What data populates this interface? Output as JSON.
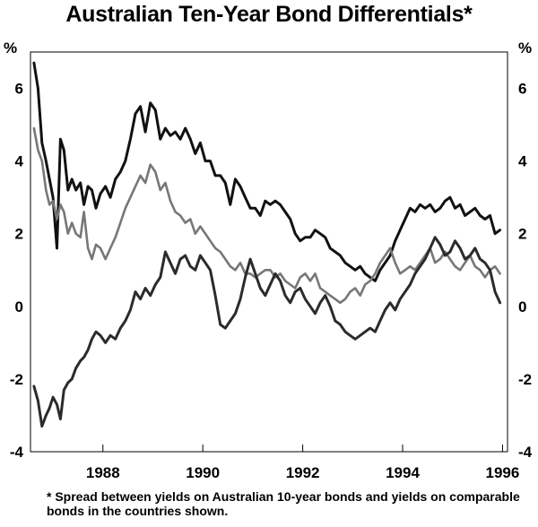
{
  "chart_data": {
    "type": "line",
    "title": "Australian Ten-Year Bond Differentials*",
    "left_unit": "%",
    "right_unit": "%",
    "ylim": [
      -4,
      7
    ],
    "xlim": [
      1986.55,
      1996.1
    ],
    "y_ticks": [
      "6",
      "4",
      "2",
      "0",
      "-2",
      "-4"
    ],
    "y_tick_values": [
      6,
      4,
      2,
      0,
      -2,
      -4
    ],
    "x_ticks": [
      "1988",
      "1990",
      "1992",
      "1994",
      "1996"
    ],
    "x_tick_values": [
      1988,
      1990,
      1992,
      1994,
      1996
    ],
    "note": "* Spread between yields on Australian 10-year bonds and yields on comparable bonds in the countries shown.",
    "series": [
      {
        "color": "#111111",
        "x": [
          1986.62,
          1986.7,
          1986.78,
          1986.86,
          1986.93,
          1987.0,
          1987.08,
          1987.15,
          1987.22,
          1987.3,
          1987.38,
          1987.46,
          1987.55,
          1987.62,
          1987.7,
          1987.78,
          1987.86,
          1987.95,
          1988.05,
          1988.15,
          1988.25,
          1988.35,
          1988.45,
          1988.55,
          1988.65,
          1988.75,
          1988.85,
          1988.95,
          1989.05,
          1989.15,
          1989.25,
          1989.35,
          1989.45,
          1989.55,
          1989.65,
          1989.75,
          1989.85,
          1989.95,
          1990.05,
          1990.15,
          1990.25,
          1990.35,
          1990.45,
          1990.55,
          1990.65,
          1990.75,
          1990.85,
          1990.95,
          1991.05,
          1991.15,
          1991.25,
          1991.35,
          1991.45,
          1991.55,
          1991.65,
          1991.75,
          1991.85,
          1991.95,
          1992.05,
          1992.15,
          1992.25,
          1992.35,
          1992.45,
          1992.55,
          1992.65,
          1992.75,
          1992.85,
          1992.95,
          1993.05,
          1993.15,
          1993.25,
          1993.35,
          1993.45,
          1993.55,
          1993.65,
          1993.75,
          1993.85,
          1993.95,
          1994.05,
          1994.15,
          1994.25,
          1994.35,
          1994.45,
          1994.55,
          1994.65,
          1994.75,
          1994.85,
          1994.95,
          1995.05,
          1995.15,
          1995.25,
          1995.35,
          1995.45,
          1995.55,
          1995.65,
          1995.75,
          1995.85,
          1995.95
        ],
        "y": [
          6.7,
          6.0,
          4.5,
          4.0,
          3.5,
          3.0,
          1.6,
          4.6,
          4.3,
          3.2,
          3.5,
          3.2,
          3.4,
          2.8,
          3.3,
          3.2,
          2.7,
          3.1,
          3.3,
          3.0,
          3.5,
          3.7,
          4.0,
          4.6,
          5.3,
          5.5,
          4.8,
          5.6,
          5.4,
          4.6,
          4.9,
          4.7,
          4.8,
          4.6,
          4.9,
          4.6,
          4.2,
          4.5,
          4.0,
          4.0,
          3.6,
          3.6,
          3.4,
          2.8,
          3.5,
          3.3,
          3.0,
          2.7,
          2.7,
          2.5,
          2.9,
          2.8,
          2.9,
          2.8,
          2.6,
          2.4,
          2.0,
          1.8,
          1.9,
          1.9,
          2.1,
          2.0,
          1.9,
          1.6,
          1.5,
          1.4,
          1.2,
          1.1,
          1.0,
          1.1,
          0.9,
          0.8,
          0.7,
          1.0,
          1.2,
          1.4,
          1.8,
          2.1,
          2.4,
          2.7,
          2.6,
          2.8,
          2.7,
          2.8,
          2.6,
          2.7,
          2.9,
          3.0,
          2.7,
          2.8,
          2.5,
          2.6,
          2.7,
          2.5,
          2.4,
          2.5,
          2.0,
          2.1
        ]
      },
      {
        "color": "#777777",
        "x": [
          1986.62,
          1986.7,
          1986.78,
          1986.86,
          1986.93,
          1987.0,
          1987.08,
          1987.15,
          1987.22,
          1987.3,
          1987.38,
          1987.46,
          1987.55,
          1987.62,
          1987.7,
          1987.78,
          1987.86,
          1987.95,
          1988.05,
          1988.15,
          1988.25,
          1988.35,
          1988.45,
          1988.55,
          1988.65,
          1988.75,
          1988.85,
          1988.95,
          1989.05,
          1989.15,
          1989.25,
          1989.35,
          1989.45,
          1989.55,
          1989.65,
          1989.75,
          1989.85,
          1989.95,
          1990.05,
          1990.15,
          1990.25,
          1990.35,
          1990.45,
          1990.55,
          1990.65,
          1990.75,
          1990.85,
          1990.95,
          1991.05,
          1991.15,
          1991.25,
          1991.35,
          1991.45,
          1991.55,
          1991.65,
          1991.75,
          1991.85,
          1991.95,
          1992.05,
          1992.15,
          1992.25,
          1992.35,
          1992.45,
          1992.55,
          1992.65,
          1992.75,
          1992.85,
          1992.95,
          1993.05,
          1993.15,
          1993.25,
          1993.35,
          1993.45,
          1993.55,
          1993.65,
          1993.75,
          1993.85,
          1993.95,
          1994.05,
          1994.15,
          1994.25,
          1994.35,
          1994.45,
          1994.55,
          1994.65,
          1994.75,
          1994.85,
          1994.95,
          1995.05,
          1995.15,
          1995.25,
          1995.35,
          1995.45,
          1995.55,
          1995.65,
          1995.75,
          1995.85,
          1995.95
        ],
        "y": [
          4.9,
          4.3,
          4.0,
          3.2,
          2.8,
          2.9,
          2.4,
          2.8,
          2.6,
          2.0,
          2.3,
          2.0,
          1.9,
          2.6,
          1.6,
          1.3,
          1.7,
          1.6,
          1.3,
          1.6,
          1.9,
          2.3,
          2.7,
          3.0,
          3.3,
          3.6,
          3.4,
          3.9,
          3.7,
          3.2,
          3.4,
          2.9,
          2.6,
          2.5,
          2.3,
          2.4,
          2.0,
          2.2,
          2.0,
          1.8,
          1.6,
          1.5,
          1.3,
          1.1,
          1.0,
          1.2,
          0.9,
          0.9,
          0.8,
          0.9,
          1.0,
          1.0,
          0.8,
          0.9,
          0.7,
          0.6,
          0.5,
          0.8,
          0.9,
          0.7,
          0.9,
          0.5,
          0.4,
          0.3,
          0.2,
          0.1,
          0.2,
          0.4,
          0.5,
          0.3,
          0.6,
          0.7,
          0.9,
          1.2,
          1.4,
          1.6,
          1.2,
          0.9,
          1.0,
          1.1,
          1.0,
          1.2,
          1.4,
          1.6,
          1.2,
          1.3,
          1.5,
          1.3,
          1.1,
          1.0,
          1.2,
          1.4,
          1.1,
          1.0,
          0.8,
          1.0,
          1.1,
          0.9
        ]
      },
      {
        "color": "#2b2b2b",
        "x": [
          1986.62,
          1986.7,
          1986.78,
          1986.86,
          1986.93,
          1987.0,
          1987.08,
          1987.15,
          1987.22,
          1987.3,
          1987.38,
          1987.46,
          1987.55,
          1987.62,
          1987.7,
          1987.78,
          1987.86,
          1987.95,
          1988.05,
          1988.15,
          1988.25,
          1988.35,
          1988.45,
          1988.55,
          1988.65,
          1988.75,
          1988.85,
          1988.95,
          1989.05,
          1989.15,
          1989.25,
          1989.35,
          1989.45,
          1989.55,
          1989.65,
          1989.75,
          1989.85,
          1989.95,
          1990.05,
          1990.15,
          1990.25,
          1990.35,
          1990.45,
          1990.55,
          1990.65,
          1990.75,
          1990.85,
          1990.95,
          1991.05,
          1991.15,
          1991.25,
          1991.35,
          1991.45,
          1991.55,
          1991.65,
          1991.75,
          1991.85,
          1991.95,
          1992.05,
          1992.15,
          1992.25,
          1992.35,
          1992.45,
          1992.55,
          1992.65,
          1992.75,
          1992.85,
          1992.95,
          1993.05,
          1993.15,
          1993.25,
          1993.35,
          1993.45,
          1993.55,
          1993.65,
          1993.75,
          1993.85,
          1993.95,
          1994.05,
          1994.15,
          1994.25,
          1994.35,
          1994.45,
          1994.55,
          1994.65,
          1994.75,
          1994.85,
          1994.95,
          1995.05,
          1995.15,
          1995.25,
          1995.35,
          1995.45,
          1995.55,
          1995.65,
          1995.75,
          1995.85,
          1995.95
        ],
        "y": [
          -2.2,
          -2.6,
          -3.3,
          -3.0,
          -2.8,
          -2.5,
          -2.7,
          -3.1,
          -2.3,
          -2.1,
          -2.0,
          -1.7,
          -1.5,
          -1.4,
          -1.2,
          -0.9,
          -0.7,
          -0.8,
          -1.0,
          -0.8,
          -0.9,
          -0.6,
          -0.4,
          -0.1,
          0.4,
          0.2,
          0.5,
          0.3,
          0.6,
          0.8,
          1.5,
          1.2,
          0.9,
          1.3,
          1.4,
          1.1,
          1.0,
          1.4,
          1.2,
          1.0,
          0.3,
          -0.5,
          -0.6,
          -0.4,
          -0.2,
          0.2,
          0.8,
          1.3,
          0.9,
          0.5,
          0.3,
          0.6,
          0.9,
          0.7,
          0.3,
          0.1,
          0.4,
          0.5,
          0.2,
          0.0,
          -0.2,
          0.1,
          0.3,
          0.0,
          -0.4,
          -0.5,
          -0.7,
          -0.8,
          -0.9,
          -0.8,
          -0.7,
          -0.6,
          -0.7,
          -0.4,
          -0.1,
          0.1,
          -0.1,
          0.2,
          0.4,
          0.6,
          0.9,
          1.1,
          1.3,
          1.6,
          1.9,
          1.7,
          1.4,
          1.5,
          1.8,
          1.6,
          1.3,
          1.4,
          1.6,
          1.3,
          1.2,
          1.0,
          0.4,
          0.1
        ]
      }
    ]
  }
}
